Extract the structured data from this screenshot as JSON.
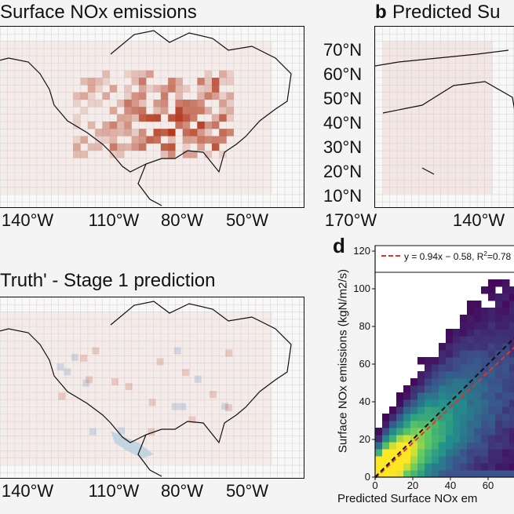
{
  "panels": {
    "a": {
      "title": "Surface NOx emissions",
      "lon_ticks": [
        "140°W",
        "110°W",
        "80°W",
        "50°W"
      ]
    },
    "b": {
      "letter": "b",
      "title": "Predicted Su",
      "lat_ticks": [
        "70°N",
        "60°N",
        "50°N",
        "40°N",
        "30°N",
        "20°N",
        "10°N"
      ],
      "lon_ticks": [
        "170°W",
        "140°W"
      ]
    },
    "c": {
      "title": "Truth' - Stage 1 prediction",
      "lon_ticks": [
        "140°W",
        "110°W",
        "80°W",
        "50°W"
      ]
    }
  },
  "chart_data": {
    "type": "heatmap",
    "panel_letter": "d",
    "xlabel": "Predicted Surface NOx em",
    "ylabel": "Surface NOx emissions (kgN/m2/s)",
    "xticks": [
      "0",
      "20",
      "40",
      "60"
    ],
    "yticks": [
      "0",
      "20",
      "40",
      "60",
      "80",
      "100",
      "120"
    ],
    "xlim": [
      0,
      75
    ],
    "ylim": [
      0,
      120
    ],
    "colormap": "viridis",
    "legend": {
      "placement": "top",
      "entry": "y = 0.94x − 0.58, R²=0.78",
      "entry_r2_sup": "2"
    },
    "lines": [
      {
        "name": "fit",
        "slope": 0.94,
        "intercept": -0.58,
        "color": "#e8312a",
        "style": "dashed"
      },
      {
        "name": "1:1",
        "slope": 1,
        "intercept": 0,
        "color": "#111111",
        "style": "dashed"
      }
    ],
    "legend_text": {
      "pre": "y = 0.94x − 0.58, R",
      "sup": "2",
      "post": "=0.78"
    }
  },
  "colors": {
    "emission": "#b23a1d",
    "negative": "#4a7fb5",
    "background": "#f4f4f4"
  }
}
